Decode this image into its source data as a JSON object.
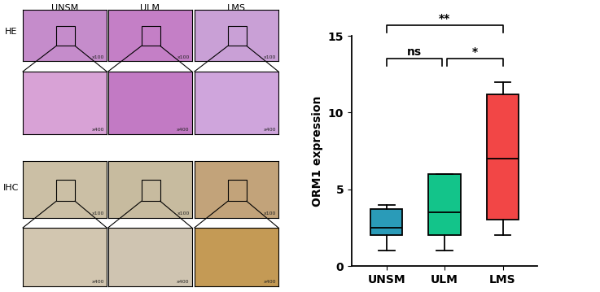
{
  "chart_data": {
    "type": "box",
    "y_label": "ORM1 expression",
    "categories": [
      "UNSM",
      "ULM",
      "LMS"
    ],
    "colors": [
      "#2a9bb8",
      "#13c48a",
      "#f24646"
    ],
    "whisker_low": [
      1,
      1,
      2
    ],
    "q1": [
      2,
      2,
      3
    ],
    "median": [
      2.5,
      3.5,
      7
    ],
    "q3": [
      3.7,
      6,
      11.2
    ],
    "whisker_high": [
      4,
      6,
      12
    ],
    "ylim": [
      0,
      15
    ],
    "yticks": [
      0,
      5,
      10,
      15
    ],
    "grid": false,
    "comparisons": [
      {
        "groups": [
          "UNSM",
          "ULM"
        ],
        "label": "ns"
      },
      {
        "groups": [
          "ULM",
          "LMS"
        ],
        "label": "*"
      },
      {
        "groups": [
          "UNSM",
          "LMS"
        ],
        "label": "**"
      }
    ]
  },
  "micrographs": {
    "columns": [
      "UNSM",
      "ULM",
      "LMS"
    ],
    "stains": [
      "HE",
      "IHC"
    ],
    "magnifications": [
      "x100",
      "x400"
    ]
  }
}
